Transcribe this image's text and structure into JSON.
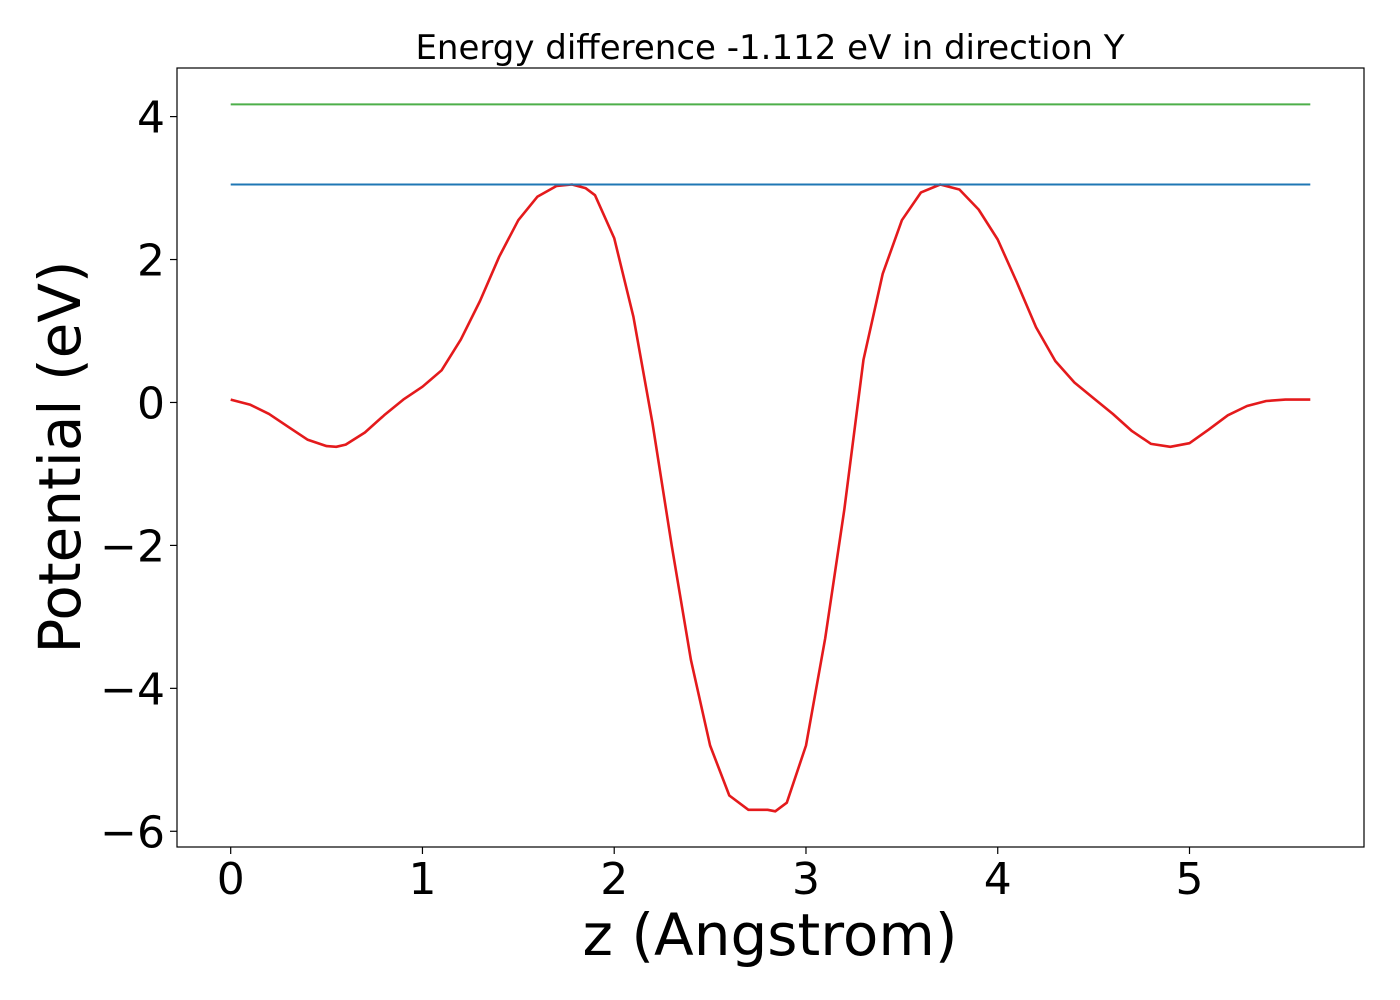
{
  "chart_data": {
    "type": "line",
    "title": "Energy difference -1.112 eV in direction Y",
    "xlabel": "z (Angstrom)",
    "ylabel": "Potential (eV)",
    "xlim": [
      -0.28,
      5.91
    ],
    "ylim": [
      -6.22,
      4.68
    ],
    "xticks": [
      0,
      1,
      2,
      3,
      4,
      5
    ],
    "xtick_labels": [
      "0",
      "1",
      "2",
      "3",
      "4",
      "5"
    ],
    "yticks": [
      -6,
      -4,
      -2,
      0,
      2,
      4
    ],
    "ytick_labels": [
      "−6",
      "−4",
      "−2",
      "0",
      "2",
      "4"
    ],
    "grid": false,
    "series": [
      {
        "color": "#e41a1c",
        "x": [
          0,
          0.1,
          0.2,
          0.3,
          0.4,
          0.5,
          0.55,
          0.6,
          0.7,
          0.8,
          0.9,
          1.0,
          1.1,
          1.2,
          1.3,
          1.4,
          1.5,
          1.6,
          1.7,
          1.78,
          1.85,
          1.9,
          2.0,
          2.1,
          2.2,
          2.3,
          2.4,
          2.5,
          2.6,
          2.7,
          2.8,
          2.84,
          2.9,
          3.0,
          3.1,
          3.2,
          3.3,
          3.4,
          3.5,
          3.6,
          3.7,
          3.8,
          3.9,
          4.0,
          4.1,
          4.2,
          4.3,
          4.4,
          4.5,
          4.6,
          4.7,
          4.8,
          4.9,
          5.0,
          5.1,
          5.2,
          5.3,
          5.4,
          5.5,
          5.63
        ],
        "y": [
          0.04,
          -0.03,
          -0.16,
          -0.34,
          -0.52,
          -0.61,
          -0.62,
          -0.59,
          -0.42,
          -0.18,
          0.04,
          0.22,
          0.45,
          0.88,
          1.42,
          2.04,
          2.55,
          2.88,
          3.03,
          3.05,
          3.0,
          2.9,
          2.3,
          1.2,
          -0.3,
          -2.0,
          -3.6,
          -4.8,
          -5.5,
          -5.7,
          -5.7,
          -5.72,
          -5.6,
          -4.8,
          -3.3,
          -1.5,
          0.6,
          1.8,
          2.55,
          2.94,
          3.05,
          2.98,
          2.7,
          2.28,
          1.68,
          1.05,
          0.58,
          0.28,
          0.06,
          -0.16,
          -0.4,
          -0.58,
          -0.62,
          -0.57,
          -0.38,
          -0.18,
          -0.05,
          0.02,
          0.04,
          0.04
        ]
      },
      {
        "color": "#1f77b4",
        "x": [
          0,
          5.63
        ],
        "y": [
          3.05,
          3.05
        ]
      },
      {
        "color": "#4daf4a",
        "x": [
          0,
          5.63
        ],
        "y": [
          4.17,
          4.17
        ]
      }
    ]
  }
}
